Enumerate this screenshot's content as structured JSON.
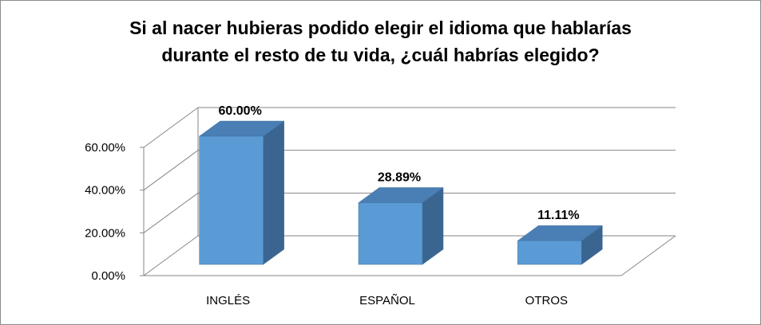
{
  "chart_data": {
    "type": "bar",
    "style": "3d-column",
    "title_lines": [
      "Si al nacer hubieras podido elegir el idioma que hablarías",
      "durante el resto de tu vida, ¿cuál habrías elegido?"
    ],
    "categories": [
      "INGLÉS",
      "ESPAÑOL",
      "OTROS"
    ],
    "values": [
      60.0,
      28.89,
      11.11
    ],
    "data_labels": [
      "60.00%",
      "28.89%",
      "11.11%"
    ],
    "y_ticks": [
      0,
      20,
      40,
      60
    ],
    "y_tick_labels": [
      "0.00%",
      "20.00%",
      "40.00%",
      "60.00%"
    ],
    "ylim": [
      0,
      60
    ],
    "value_unit": "%",
    "grid": true,
    "legend": false,
    "colors": {
      "bar_front": "#5b9bd5",
      "bar_top": "#4a7fb5",
      "bar_side": "#3a6590",
      "bar_edge": "#41719c",
      "grid": "#868686",
      "frame": "#8c8c8c"
    }
  }
}
